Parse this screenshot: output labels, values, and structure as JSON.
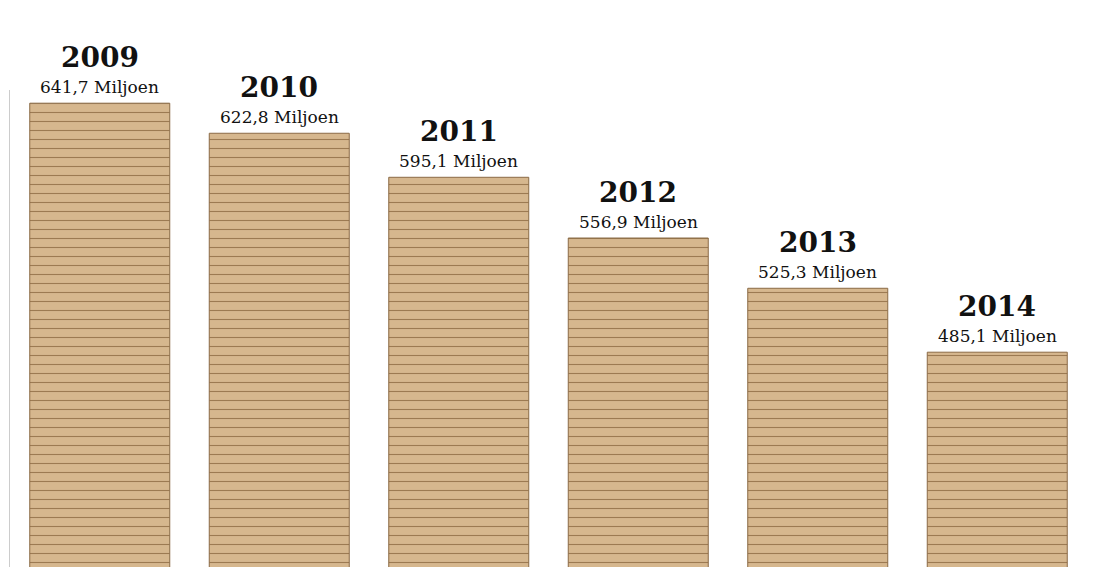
{
  "chart_data": {
    "type": "bar",
    "categories": [
      "2009",
      "2010",
      "2011",
      "2012",
      "2013",
      "2014"
    ],
    "values": [
      641.7,
      622.8,
      595.1,
      556.9,
      525.3,
      485.1
    ],
    "value_labels": [
      "641,7 Miljoen",
      "622,8 Miljoen",
      "595,1 Miljoen",
      "556,9 Miljoen",
      "525,3 Miljoen",
      "485,1 Miljoen"
    ],
    "data_labels": true,
    "color": "#d6b78e",
    "ylim": [
      350,
      650
    ],
    "tick_labels": false,
    "grid": false
  }
}
